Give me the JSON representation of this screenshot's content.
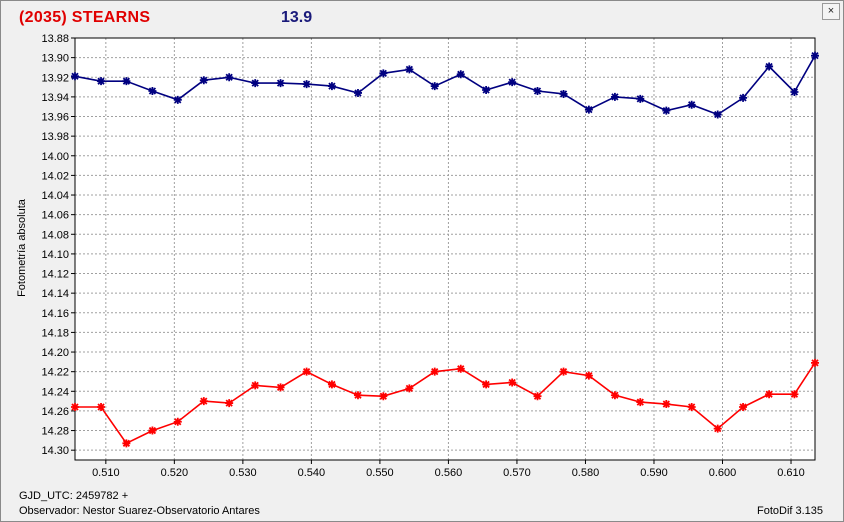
{
  "header": {
    "object_title": "(2035) STEARNS",
    "magnitude": "13.9",
    "close_glyph": "×"
  },
  "footer": {
    "gjd": "GJD_UTC: 2459782 +",
    "observer": "Observador: Nestor Suarez-Observatorio Antares",
    "version": "FotoDif 3.135"
  },
  "chart_data": {
    "type": "line",
    "title": "(2035) STEARNS",
    "xlabel": "",
    "ylabel": "Fotometría absoluta",
    "xlim": [
      0.5055,
      0.6135
    ],
    "ylim": [
      13.88,
      14.31
    ],
    "y_inverted": true,
    "grid": true,
    "x_ticks": [
      "0.510",
      "0.520",
      "0.530",
      "0.540",
      "0.550",
      "0.560",
      "0.570",
      "0.580",
      "0.590",
      "0.600",
      "0.610"
    ],
    "y_ticks": [
      "13.88",
      "13.90",
      "13.92",
      "13.94",
      "13.96",
      "13.98",
      "14.00",
      "14.02",
      "14.04",
      "14.06",
      "14.08",
      "14.10",
      "14.12",
      "14.14",
      "14.16",
      "14.18",
      "14.20",
      "14.22",
      "14.24",
      "14.26",
      "14.28",
      "14.30"
    ],
    "x": [
      0.5055,
      0.5093,
      0.513,
      0.5168,
      0.5205,
      0.5243,
      0.528,
      0.5318,
      0.5355,
      0.5393,
      0.543,
      0.5468,
      0.5505,
      0.5543,
      0.558,
      0.5618,
      0.5655,
      0.5693,
      0.573,
      0.5768,
      0.5805,
      0.5843,
      0.588,
      0.5918,
      0.5955,
      0.5993,
      0.603,
      0.6068,
      0.6105,
      0.6135
    ],
    "series": [
      {
        "color": "#000080",
        "values": [
          13.919,
          13.924,
          13.924,
          13.934,
          13.943,
          13.923,
          13.92,
          13.926,
          13.926,
          13.927,
          13.929,
          13.936,
          13.916,
          13.912,
          13.929,
          13.917,
          13.933,
          13.925,
          13.934,
          13.937,
          13.953,
          13.94,
          13.942,
          13.954,
          13.948,
          13.958,
          13.941,
          13.909,
          13.935,
          13.898
        ]
      },
      {
        "color": "#ff0000",
        "values": [
          14.256,
          14.256,
          14.293,
          14.28,
          14.271,
          14.25,
          14.252,
          14.234,
          14.236,
          14.22,
          14.233,
          14.244,
          14.245,
          14.237,
          14.22,
          14.217,
          14.233,
          14.231,
          14.245,
          14.22,
          14.224,
          14.244,
          14.251,
          14.253,
          14.256,
          14.278,
          14.256,
          14.243,
          14.243,
          14.211
        ]
      }
    ]
  }
}
